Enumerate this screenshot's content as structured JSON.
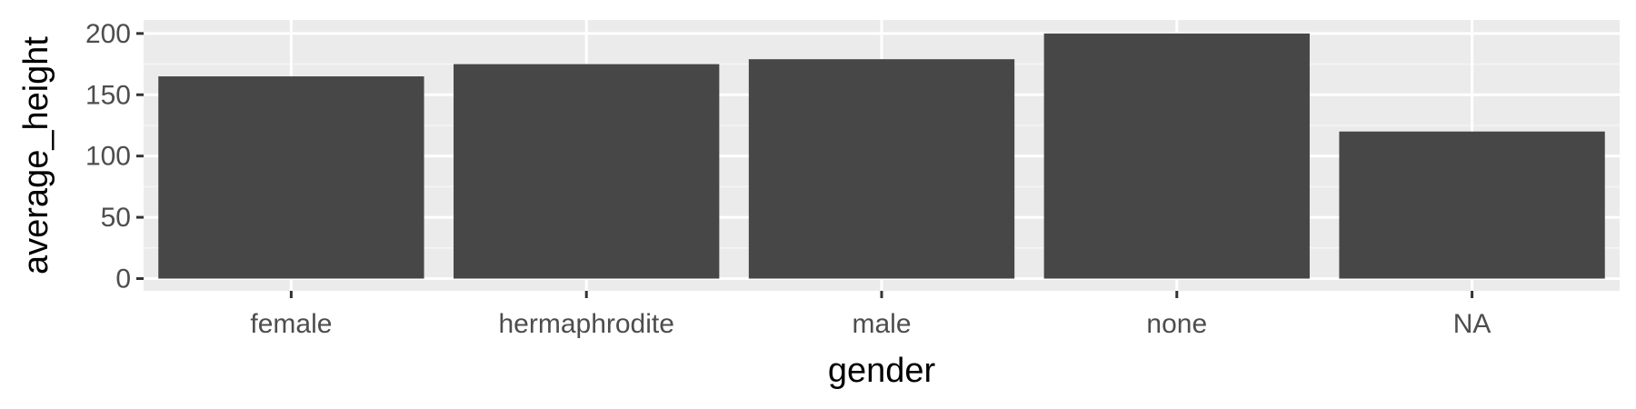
{
  "chart_data": {
    "type": "bar",
    "title": "",
    "xlabel": "gender",
    "ylabel": "average_height",
    "categories": [
      "female",
      "hermaphrodite",
      "male",
      "none",
      "NA"
    ],
    "values": [
      165,
      175,
      179,
      200,
      120
    ],
    "ylim": [
      -10,
      211
    ],
    "yticks": [
      0,
      50,
      100,
      150,
      200
    ],
    "yticklabels": [
      "0",
      "50",
      "100",
      "150",
      "200"
    ],
    "grid": true,
    "legend": "none"
  },
  "colors": {
    "panel_background": "#ebebeb",
    "grid_major": "#ffffff",
    "grid_minor": "#f5f5f5",
    "bar_fill": "#474747",
    "tick_mark": "#333333",
    "tick_label": "#4d4d4d",
    "axis_title": "#000000"
  }
}
